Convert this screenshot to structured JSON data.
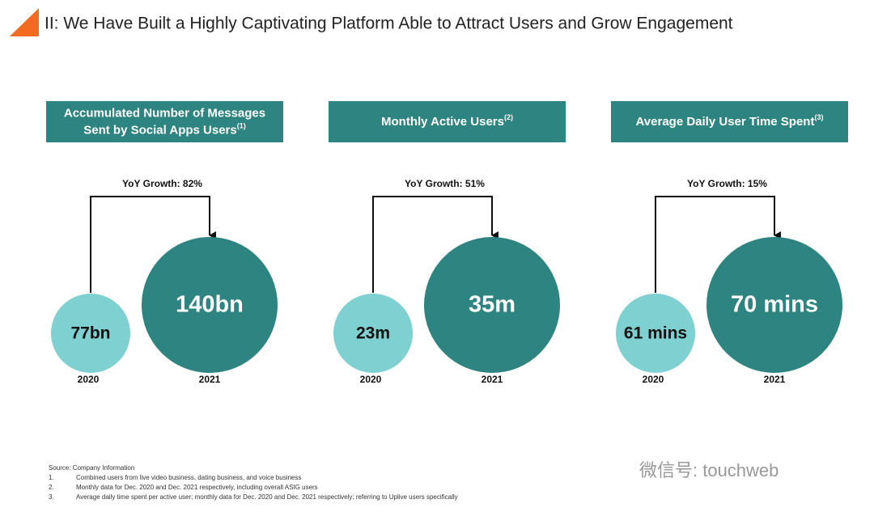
{
  "title": "II: We Have Built a Highly Captivating Platform Able to Attract Users and Grow Engagement",
  "panels": [
    {
      "header": [
        "Accumulated Number of Messages",
        "Sent by Social Apps Users"
      ],
      "superscript": "(1)",
      "growth": "YoY Growth: 82%",
      "before": {
        "value": "77bn",
        "year": "2020"
      },
      "after": {
        "value": "140bn",
        "year": "2021"
      }
    },
    {
      "header": [
        "Monthly Active Users"
      ],
      "superscript": "(2)",
      "growth": "YoY Growth: 51%",
      "before": {
        "value": "23m",
        "year": "2020"
      },
      "after": {
        "value": "35m",
        "year": "2021"
      }
    },
    {
      "header": [
        "Average Daily User Time Spent"
      ],
      "superscript": "(3)",
      "growth": "YoY Growth: 15%",
      "before": {
        "value": "61 mins",
        "year": "2020"
      },
      "after": {
        "value": "70 mins",
        "year": "2021"
      }
    }
  ],
  "source": "Source: Company Information",
  "notes": [
    {
      "num": "1.",
      "text": "Combined users from live video business, dating business, and voice business"
    },
    {
      "num": "2.",
      "text": "Monthly data for Dec. 2020 and Dec. 2021 respectively, including overall ASIG users"
    },
    {
      "num": "3.",
      "text": "Average daily time spent per active user; monthly data for Dec. 2020 and Dec. 2021 respectively; referring to Uplive users specifically"
    }
  ],
  "watermark": "微信号: touchweb"
}
